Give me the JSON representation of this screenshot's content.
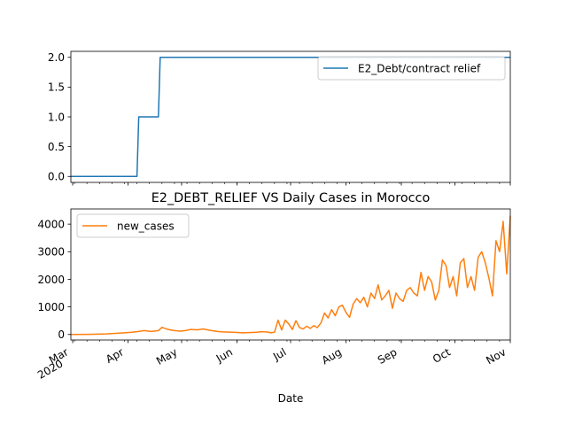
{
  "chart_data": [
    {
      "type": "line",
      "title": "",
      "xlabel": "",
      "ylabel": "",
      "x_range": [
        "2020-02-29",
        "2020-11-01"
      ],
      "ylim": [
        -0.1,
        2.1
      ],
      "yticks": [
        0.0,
        0.5,
        1.0,
        1.5,
        2.0
      ],
      "ytick_labels": [
        "0.0",
        "0.5",
        "1.0",
        "1.5",
        "2.0"
      ],
      "grid": false,
      "legend_position": "upper-right",
      "series": [
        {
          "name": "E2_Debt/contract relief",
          "color": "#1f77b4",
          "x": [
            "2020-02-29",
            "2020-04-06",
            "2020-04-07",
            "2020-04-18",
            "2020-04-19",
            "2020-11-01"
          ],
          "values": [
            0,
            0,
            1,
            1,
            2,
            2
          ]
        }
      ]
    },
    {
      "type": "line",
      "title": "E2_DEBT_RELIEF VS Daily Cases in Morocco",
      "xlabel": "Date",
      "ylabel": "",
      "x_range": [
        "2020-02-29",
        "2020-11-01"
      ],
      "ylim": [
        -200,
        4550
      ],
      "yticks": [
        0,
        1000,
        2000,
        3000,
        4000
      ],
      "ytick_labels": [
        "0",
        "1000",
        "2000",
        "3000",
        "4000"
      ],
      "xticks": [
        "2020-03-01",
        "2020-04-01",
        "2020-05-01",
        "2020-06-01",
        "2020-07-01",
        "2020-08-01",
        "2020-09-01",
        "2020-10-01",
        "2020-11-01"
      ],
      "xtick_labels": [
        "Mar\n2020",
        "Apr",
        "May",
        "Jun",
        "Jul",
        "Aug",
        "Sep",
        "Oct",
        "Nov"
      ],
      "grid": false,
      "legend_position": "upper-left",
      "series": [
        {
          "name": "new_cases",
          "color": "#ff7f0e",
          "x": [
            "2020-02-29",
            "2020-03-10",
            "2020-03-20",
            "2020-03-25",
            "2020-03-30",
            "2020-04-03",
            "2020-04-06",
            "2020-04-10",
            "2020-04-14",
            "2020-04-18",
            "2020-04-20",
            "2020-04-23",
            "2020-04-26",
            "2020-04-30",
            "2020-05-03",
            "2020-05-06",
            "2020-05-10",
            "2020-05-13",
            "2020-05-17",
            "2020-05-21",
            "2020-05-25",
            "2020-05-30",
            "2020-06-04",
            "2020-06-08",
            "2020-06-12",
            "2020-06-15",
            "2020-06-18",
            "2020-06-20",
            "2020-06-22",
            "2020-06-24",
            "2020-06-26",
            "2020-06-28",
            "2020-06-30",
            "2020-07-02",
            "2020-07-04",
            "2020-07-06",
            "2020-07-08",
            "2020-07-10",
            "2020-07-12",
            "2020-07-14",
            "2020-07-16",
            "2020-07-18",
            "2020-07-20",
            "2020-07-22",
            "2020-07-24",
            "2020-07-26",
            "2020-07-28",
            "2020-07-30",
            "2020-08-01",
            "2020-08-03",
            "2020-08-05",
            "2020-08-07",
            "2020-08-09",
            "2020-08-11",
            "2020-08-13",
            "2020-08-15",
            "2020-08-17",
            "2020-08-19",
            "2020-08-21",
            "2020-08-23",
            "2020-08-25",
            "2020-08-27",
            "2020-08-29",
            "2020-08-31",
            "2020-09-02",
            "2020-09-04",
            "2020-09-06",
            "2020-09-08",
            "2020-09-10",
            "2020-09-12",
            "2020-09-14",
            "2020-09-16",
            "2020-09-18",
            "2020-09-20",
            "2020-09-22",
            "2020-09-24",
            "2020-09-26",
            "2020-09-28",
            "2020-09-30",
            "2020-10-02",
            "2020-10-04",
            "2020-10-06",
            "2020-10-08",
            "2020-10-10",
            "2020-10-12",
            "2020-10-14",
            "2020-10-16",
            "2020-10-18",
            "2020-10-20",
            "2020-10-22",
            "2020-10-24",
            "2020-10-26",
            "2020-10-28",
            "2020-10-30",
            "2020-11-01"
          ],
          "values": [
            0,
            5,
            20,
            40,
            60,
            80,
            100,
            140,
            110,
            140,
            260,
            190,
            150,
            120,
            140,
            180,
            170,
            200,
            150,
            110,
            90,
            80,
            60,
            70,
            80,
            100,
            90,
            60,
            80,
            520,
            160,
            520,
            380,
            180,
            500,
            250,
            200,
            300,
            220,
            320,
            250,
            420,
            780,
            600,
            900,
            680,
            1000,
            1060,
            800,
            620,
            1100,
            1300,
            1150,
            1350,
            1000,
            1500,
            1300,
            1800,
            1250,
            1400,
            1600,
            950,
            1500,
            1300,
            1200,
            1600,
            1700,
            1500,
            1400,
            2250,
            1600,
            2100,
            1900,
            1250,
            1600,
            2700,
            2500,
            1700,
            2100,
            1400,
            2600,
            2750,
            1700,
            2100,
            1600,
            2800,
            3000,
            2600,
            2050,
            1400,
            3400,
            3000,
            4100,
            2200,
            4300
          ]
        }
      ]
    }
  ]
}
